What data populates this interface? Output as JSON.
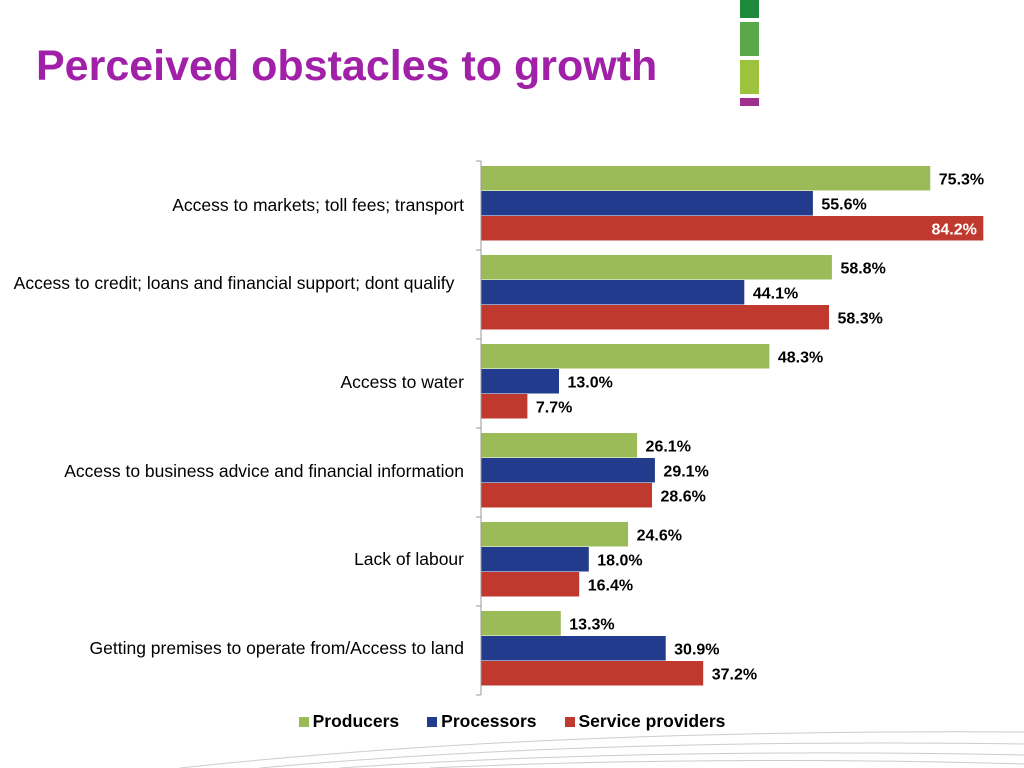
{
  "slide": {
    "title": "Perceived obstacles to growth",
    "title_color": "#A020A8",
    "decoration_colors": [
      "#1F8A3C",
      "#5BA84A",
      "#9CC23E",
      "#A0308E"
    ]
  },
  "chart_data": {
    "type": "bar",
    "orientation": "horizontal",
    "title": "",
    "xlabel": "",
    "ylabel": "",
    "xlim": [
      0,
      100
    ],
    "grid": false,
    "legend_position": "bottom",
    "value_format": "percent-1dp",
    "categories": [
      "Access to markets; toll fees; transport",
      "Access to credit; loans and financial support; dont qualify",
      "Access to water",
      "Access to business advice and financial information",
      "Lack of labour",
      "Getting premises to operate from/Access to land"
    ],
    "series": [
      {
        "name": "Producers",
        "color": "#9BBB59",
        "values": [
          75.3,
          58.8,
          48.3,
          26.1,
          24.6,
          13.3
        ]
      },
      {
        "name": "Processors",
        "color": "#233B8C",
        "values": [
          55.6,
          44.1,
          13.0,
          29.1,
          18.0,
          30.9
        ]
      },
      {
        "name": "Service providers",
        "color": "#C0392E",
        "values": [
          84.2,
          58.3,
          7.7,
          28.6,
          16.4,
          37.2
        ]
      }
    ]
  }
}
